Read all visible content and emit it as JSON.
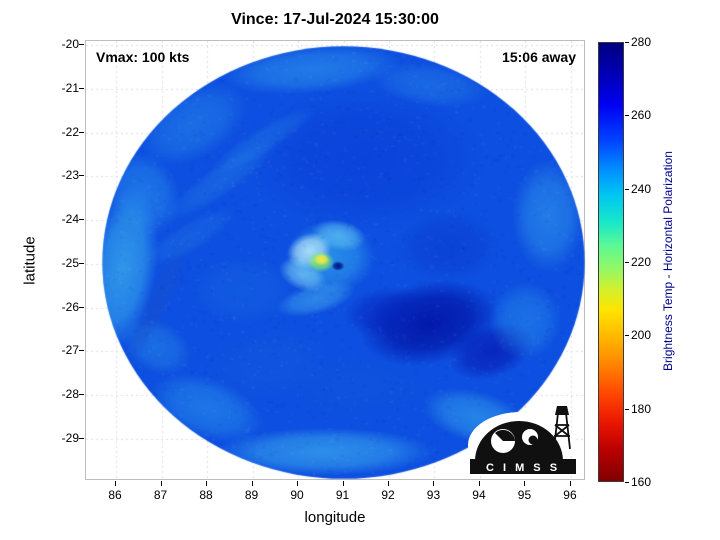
{
  "figure": {
    "title": "Vince: 17-Jul-2024 15:30:00",
    "vmax_label": "Vmax: 100 kts",
    "time_label": "15:06 away"
  },
  "axes": {
    "xlabel": "longitude",
    "ylabel": "latitude",
    "x_ticks": [
      86,
      87,
      88,
      89,
      90,
      91,
      92,
      93,
      94,
      95,
      96
    ],
    "y_ticks": [
      -20,
      -21,
      -22,
      -23,
      -24,
      -25,
      -26,
      -27,
      -28,
      -29
    ],
    "xlim": [
      85.34,
      96.33
    ],
    "ylim": [
      -29.97,
      -19.9
    ],
    "grid": true
  },
  "colorbar": {
    "label": "Brightness Temp - Horizontal Polarization",
    "label_color": "#00008b",
    "ticks": [
      280,
      260,
      240,
      220,
      200,
      180,
      160
    ],
    "min": 160,
    "max": 280,
    "colormap": "jet-reversed",
    "gradient": [
      "#00007f 0%",
      "#0000b4 7%",
      "#0000f0 14%",
      "#0040ff 22%",
      "#0090ff 29%",
      "#00c8f0 35%",
      "#18e8c8 41%",
      "#58f898 46%",
      "#98f860 52%",
      "#d0f030 56%",
      "#ffe400 61%",
      "#ffb800 67%",
      "#ff8800 73%",
      "#ff4800 80%",
      "#e81400 87%",
      "#b80000 93%",
      "#800000 100%"
    ]
  },
  "logo": {
    "text": "C I M S S"
  },
  "chart_data": {
    "type": "heatmap",
    "title": "Vince: 17-Jul-2024 15:30:00",
    "xlabel": "longitude",
    "ylabel": "latitude",
    "xlim": [
      85.34,
      96.33
    ],
    "ylim": [
      -29.97,
      -19.9
    ],
    "colorbar_label": "Brightness Temp - Horizontal Polarization",
    "colorbar_range": [
      160,
      280
    ],
    "legend_position": "right-colorbar",
    "storm": {
      "name": "Vince",
      "datetime": "17-Jul-2024 15:30:00",
      "vmax_kts": 100,
      "time_offset_label": "15:06 away",
      "eye_lon": 90.88,
      "eye_lat": -25.05
    },
    "swath": {
      "center_lon": 91.0,
      "center_lat": -24.97,
      "radius_lon_deg": 5.3,
      "radius_lat_deg": 4.95
    },
    "base_color": "#0d4fe0",
    "features": [
      {
        "lon": 91.5,
        "lat": -22.6,
        "rx": 2.6,
        "ry": 1.6,
        "rot": 0,
        "color": "#0a3ad6",
        "alpha": 0.55,
        "note": "darker blue north of core"
      },
      {
        "lon": 93.3,
        "lat": -24.6,
        "rx": 1.1,
        "ry": 0.8,
        "rot": 0,
        "color": "#0838cc",
        "alpha": 0.5
      },
      {
        "lon": 92.9,
        "lat": -26.35,
        "rx": 1.55,
        "ry": 0.95,
        "rot": -12,
        "color": "#0110a2",
        "alpha": 0.85,
        "note": "dark warm patch southeast of eye"
      },
      {
        "lon": 94.25,
        "lat": -27.0,
        "rx": 0.95,
        "ry": 0.6,
        "rot": -20,
        "color": "#0716ae",
        "alpha": 0.7
      },
      {
        "lon": 91.9,
        "lat": -26.1,
        "rx": 0.9,
        "ry": 0.55,
        "rot": -10,
        "color": "#0622bc",
        "alpha": 0.6
      },
      {
        "lon": 86.15,
        "lat": -25.1,
        "rx": 0.75,
        "ry": 1.9,
        "rot": 8,
        "color": "#46c6f0",
        "alpha": 0.6,
        "note": "bright band west edge"
      },
      {
        "lon": 86.6,
        "lat": -23.4,
        "rx": 0.8,
        "ry": 1.0,
        "rot": -25,
        "color": "#2f9bee",
        "alpha": 0.5
      },
      {
        "lon": 87.7,
        "lat": -21.8,
        "rx": 1.3,
        "ry": 0.8,
        "rot": -30,
        "color": "#2e93ea",
        "alpha": 0.45
      },
      {
        "lon": 90.3,
        "lat": -20.55,
        "rx": 2.0,
        "ry": 0.55,
        "rot": -5,
        "color": "#37a6ee",
        "alpha": 0.5,
        "note": "light arc north edge"
      },
      {
        "lon": 92.9,
        "lat": -20.9,
        "rx": 1.3,
        "ry": 0.5,
        "rot": 8,
        "color": "#2d8fe8",
        "alpha": 0.4
      },
      {
        "lon": 95.5,
        "lat": -23.9,
        "rx": 0.8,
        "ry": 1.3,
        "rot": 0,
        "color": "#3aa9ee",
        "alpha": 0.5
      },
      {
        "lon": 95.0,
        "lat": -26.3,
        "rx": 0.8,
        "ry": 0.9,
        "rot": 0,
        "color": "#2f9bee",
        "alpha": 0.45
      },
      {
        "lon": 93.9,
        "lat": -28.5,
        "rx": 1.2,
        "ry": 0.6,
        "rot": 15,
        "color": "#3fb8ef",
        "alpha": 0.5
      },
      {
        "lon": 90.6,
        "lat": -29.3,
        "rx": 2.4,
        "ry": 0.55,
        "rot": 0,
        "color": "#49c4f1",
        "alpha": 0.55,
        "note": "light arc south edge"
      },
      {
        "lon": 88.0,
        "lat": -28.3,
        "rx": 1.3,
        "ry": 0.7,
        "rot": 20,
        "color": "#2f9fee",
        "alpha": 0.5
      },
      {
        "lon": 86.9,
        "lat": -26.9,
        "rx": 0.8,
        "ry": 0.6,
        "rot": 30,
        "color": "#2d93e8",
        "alpha": 0.45
      },
      {
        "lon": 86.9,
        "lat": -25.9,
        "rx": 1.6,
        "ry": 0.28,
        "rot": -65,
        "color": "#1b50c8",
        "alpha": 0.4,
        "note": "swath seam streak"
      },
      {
        "lon": 88.3,
        "lat": -23.1,
        "rx": 1.5,
        "ry": 0.35,
        "rot": -35,
        "color": "#2b8ae6",
        "alpha": 0.35
      },
      {
        "lon": 89.2,
        "lat": -22.2,
        "rx": 1.4,
        "ry": 0.3,
        "rot": -32,
        "color": "#2d8fe8",
        "alpha": 0.32
      },
      {
        "lon": 87.6,
        "lat": -24.4,
        "rx": 1.2,
        "ry": 0.35,
        "rot": -30,
        "color": "#2a86e4",
        "alpha": 0.3
      },
      {
        "lon": 88.8,
        "lat": -25.6,
        "rx": 1.2,
        "ry": 0.8,
        "rot": 0,
        "color": "#1a6ae4",
        "alpha": 0.4
      },
      {
        "lon": 89.4,
        "lat": -27.3,
        "rx": 1.4,
        "ry": 0.8,
        "rot": -10,
        "color": "#155cdc",
        "alpha": 0.4
      },
      {
        "lon": 91.3,
        "lat": -27.8,
        "rx": 1.5,
        "ry": 0.7,
        "rot": 0,
        "color": "#1258d8",
        "alpha": 0.4
      },
      {
        "lon": 90.7,
        "lat": -24.85,
        "rx": 1.0,
        "ry": 0.85,
        "rot": 0,
        "color": "#3fbef0",
        "alpha": 0.55,
        "note": "light core region"
      },
      {
        "lon": 90.25,
        "lat": -24.7,
        "rx": 0.5,
        "ry": 0.4,
        "rot": -20,
        "color": "#c9f4fc",
        "alpha": 0.8,
        "note": "bright eyewall west"
      },
      {
        "lon": 90.1,
        "lat": -25.25,
        "rx": 0.55,
        "ry": 0.35,
        "rot": 25,
        "color": "#8fe4f8",
        "alpha": 0.6
      },
      {
        "lon": 90.9,
        "lat": -24.35,
        "rx": 0.6,
        "ry": 0.35,
        "rot": 10,
        "color": "#74daf6",
        "alpha": 0.55
      },
      {
        "lon": 90.4,
        "lat": -25.8,
        "rx": 0.9,
        "ry": 0.35,
        "rot": -15,
        "color": "#56ccf2",
        "alpha": 0.45,
        "note": "inner band south of eye"
      },
      {
        "lon": 90.5,
        "lat": -24.95,
        "rx": 0.3,
        "ry": 0.24,
        "rot": 0,
        "color": "#8ff05e",
        "alpha": 0.9,
        "note": "green convective burst"
      },
      {
        "lon": 90.52,
        "lat": -24.9,
        "rx": 0.17,
        "ry": 0.13,
        "rot": 0,
        "color": "#ffe83c",
        "alpha": 0.95,
        "note": "yellow hot spot ~200K"
      },
      {
        "lon": 90.88,
        "lat": -25.05,
        "rx": 0.14,
        "ry": 0.11,
        "rot": 0,
        "color": "#001286",
        "alpha": 1.0,
        "note": "eye dark pixel"
      }
    ]
  }
}
